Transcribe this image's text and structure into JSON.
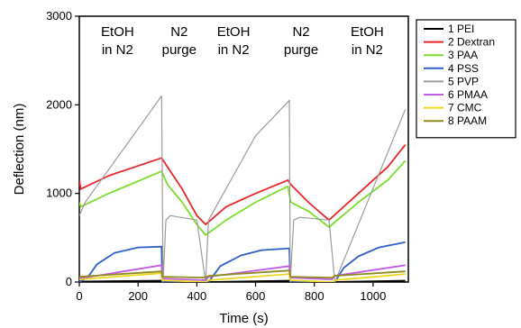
{
  "chart_data": {
    "type": "line",
    "xlabel": "Time (s)",
    "ylabel": "Deflection (nm)",
    "xlim": [
      0,
      1120
    ],
    "ylim": [
      0,
      3000
    ],
    "xticks": [
      0,
      200,
      400,
      600,
      800,
      1000
    ],
    "yticks": [
      0,
      1000,
      2000,
      3000
    ],
    "grid": false,
    "legend_position": "right",
    "annotations": [
      {
        "lines": [
          "EtOH",
          "in N2"
        ],
        "x": 130
      },
      {
        "lines": [
          "N2",
          "purge"
        ],
        "x": 340
      },
      {
        "lines": [
          "EtOH",
          "in N2"
        ],
        "x": 525
      },
      {
        "lines": [
          "N2",
          "purge"
        ],
        "x": 755
      },
      {
        "lines": [
          "EtOH",
          "in N2"
        ],
        "x": 980
      }
    ],
    "series": [
      {
        "name": "1 PEI",
        "color": "#000000",
        "x": [
          0,
          280,
          285,
          430,
          440,
          715,
          720,
          860,
          870,
          1110
        ],
        "y": [
          5,
          15,
          0,
          -20,
          0,
          15,
          0,
          -20,
          0,
          15
        ]
      },
      {
        "name": "2 Dextran",
        "color": "#e8262a",
        "x": [
          0,
          5,
          100,
          280,
          300,
          350,
          400,
          430,
          500,
          600,
          710,
          720,
          780,
          850,
          950,
          1050,
          1110
        ],
        "y": [
          1150,
          1050,
          1200,
          1400,
          1300,
          1050,
          750,
          650,
          850,
          1000,
          1150,
          1100,
          900,
          700,
          1000,
          1300,
          1550
        ]
      },
      {
        "name": "3 PAA",
        "color": "#7cdd2a",
        "x": [
          0,
          5,
          100,
          280,
          300,
          350,
          400,
          430,
          500,
          600,
          710,
          720,
          780,
          850,
          950,
          1050,
          1110
        ],
        "y": [
          900,
          850,
          1000,
          1250,
          1100,
          900,
          650,
          530,
          700,
          900,
          1080,
          900,
          800,
          620,
          900,
          1150,
          1370
        ]
      },
      {
        "name": "4 PSS",
        "color": "#2f5ec9",
        "x": [
          0,
          30,
          60,
          120,
          200,
          280,
          282,
          430,
          440,
          480,
          550,
          620,
          715,
          718,
          860,
          870,
          900,
          950,
          1020,
          1110
        ],
        "y": [
          0,
          60,
          200,
          330,
          390,
          400,
          0,
          0,
          0,
          180,
          300,
          360,
          380,
          0,
          0,
          0,
          160,
          290,
          390,
          450
        ]
      },
      {
        "name": "5 PVP",
        "color": "#9c9c9c",
        "x": [
          0,
          20,
          280,
          285,
          295,
          310,
          400,
          430,
          440,
          600,
          715,
          718,
          730,
          750,
          850,
          870,
          1110
        ],
        "y": [
          750,
          900,
          2100,
          0,
          700,
          750,
          700,
          0,
          700,
          1650,
          2050,
          0,
          700,
          730,
          700,
          0,
          1950
        ]
      },
      {
        "name": "6 PMAA",
        "color": "#c05ce3",
        "x": [
          0,
          280,
          282,
          430,
          440,
          715,
          718,
          860,
          870,
          1110
        ],
        "y": [
          40,
          190,
          40,
          20,
          60,
          180,
          50,
          30,
          70,
          190
        ]
      },
      {
        "name": "7 CMC",
        "color": "#ecd821",
        "x": [
          0,
          280,
          282,
          430,
          440,
          715,
          718,
          860,
          870,
          1110
        ],
        "y": [
          30,
          100,
          20,
          0,
          20,
          90,
          20,
          0,
          20,
          90
        ]
      },
      {
        "name": "8 PAAM",
        "color": "#8f8a1e",
        "x": [
          0,
          280,
          282,
          430,
          440,
          715,
          718,
          860,
          870,
          1110
        ],
        "y": [
          60,
          120,
          60,
          50,
          70,
          130,
          60,
          50,
          70,
          120
        ]
      }
    ]
  }
}
